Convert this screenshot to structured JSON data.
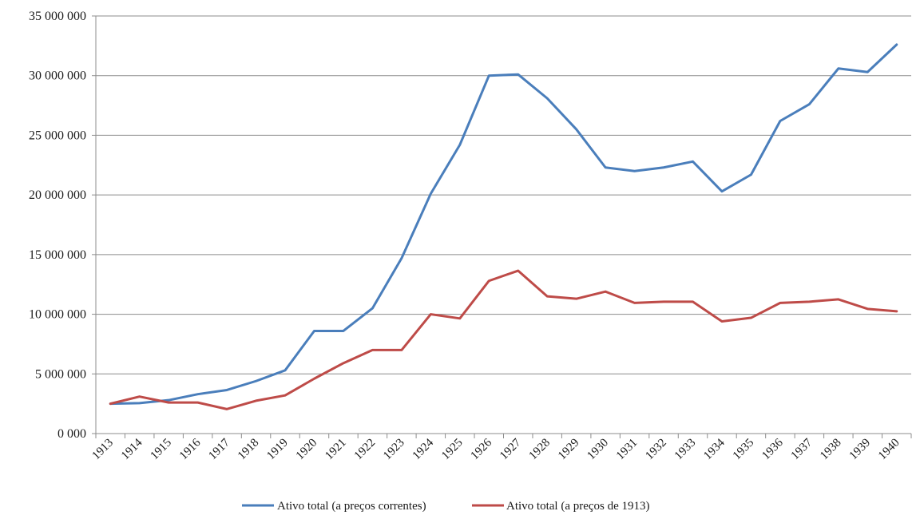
{
  "chart_data": {
    "type": "line",
    "title": "",
    "xlabel": "",
    "ylabel": "",
    "ylim": [
      0,
      35000000
    ],
    "grid": "horizontal",
    "legend_position": "bottom",
    "y_tick_labels": [
      "0 000",
      "5 000 000",
      "10 000 000",
      "15 000 000",
      "20 000 000",
      "25 000 000",
      "30 000 000",
      "35 000 000"
    ],
    "categories": [
      "1913",
      "1914",
      "1915",
      "1916",
      "1917",
      "1918",
      "1919",
      "1920",
      "1921",
      "1922",
      "1923",
      "1924",
      "1925",
      "1926",
      "1927",
      "1928",
      "1929",
      "1930",
      "1931",
      "1932",
      "1933",
      "1934",
      "1935",
      "1936",
      "1937",
      "1938",
      "1939",
      "1940"
    ],
    "series": [
      {
        "name": "Ativo total (a preços correntes)",
        "color": "#4a7ebb",
        "values": [
          2500000,
          2550000,
          2800000,
          3300000,
          3650000,
          4400000,
          5300000,
          8600000,
          8600000,
          10500000,
          14700000,
          20100000,
          24200000,
          30000000,
          30100000,
          28100000,
          25500000,
          22300000,
          22000000,
          22300000,
          22800000,
          20300000,
          21700000,
          26200000,
          27600000,
          30600000,
          30300000,
          32600000
        ]
      },
      {
        "name": "Ativo total (a preços de 1913)",
        "color": "#be4b48",
        "values": [
          2500000,
          3100000,
          2600000,
          2600000,
          2050000,
          2750000,
          3200000,
          4600000,
          5900000,
          7000000,
          7000000,
          10000000,
          9650000,
          12800000,
          13650000,
          11500000,
          11300000,
          11900000,
          10950000,
          11050000,
          11050000,
          9400000,
          9700000,
          10950000,
          11050000,
          11250000,
          10450000,
          10250000
        ]
      }
    ]
  }
}
